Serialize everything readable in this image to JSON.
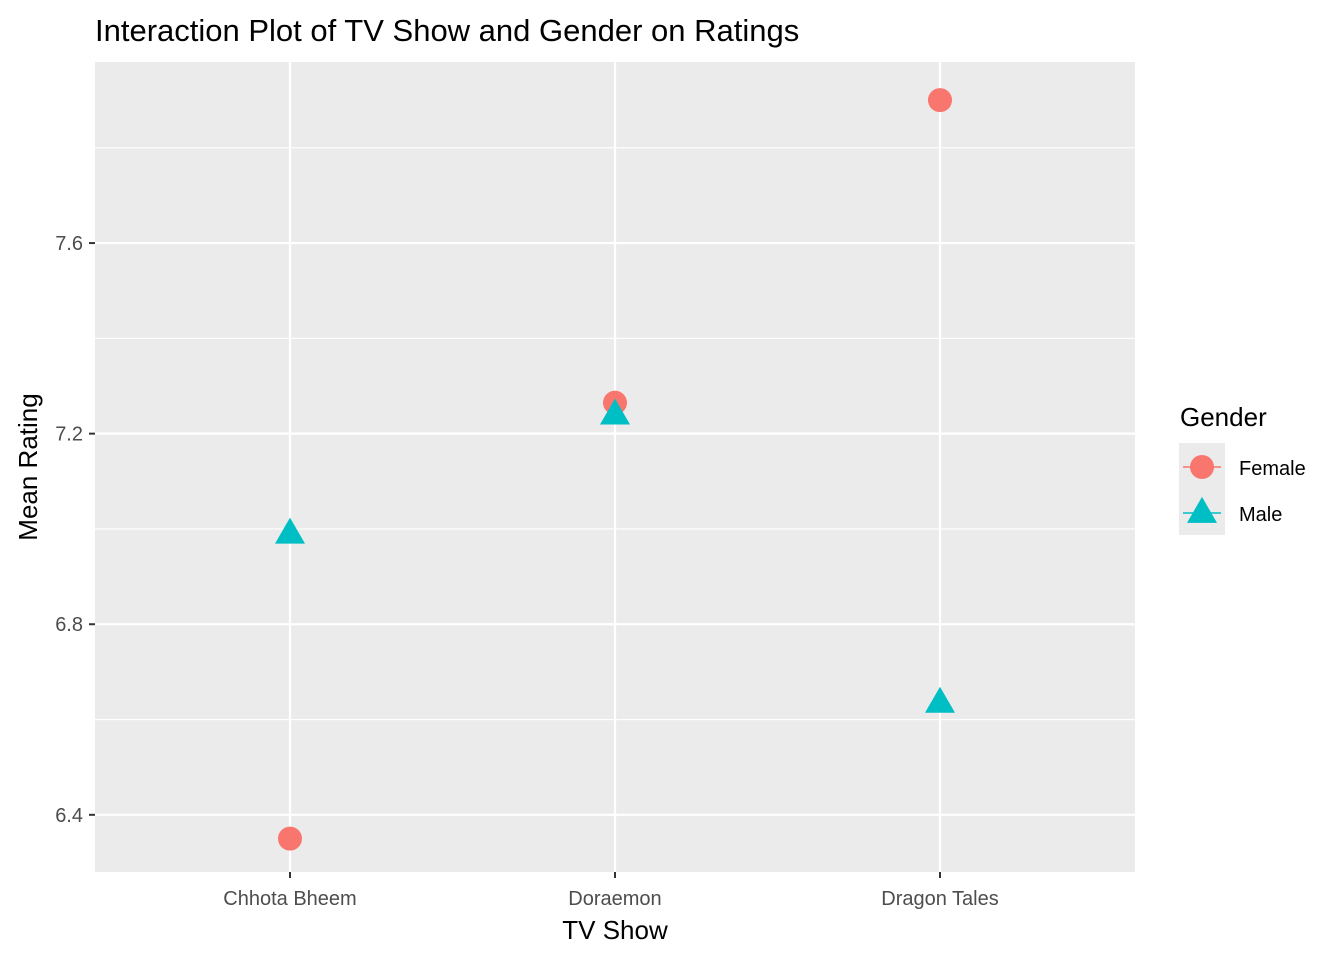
{
  "chart_data": {
    "type": "scatter",
    "title": "Interaction Plot of TV Show and Gender on Ratings",
    "xlabel": "TV Show",
    "ylabel": "Mean Rating",
    "categories": [
      "Chhota Bheem",
      "Doraemon",
      "Dragon Tales"
    ],
    "y_ticks": [
      "6.4",
      "6.8",
      "7.2",
      "7.6"
    ],
    "ylim": [
      6.28,
      7.98
    ],
    "grid": true,
    "legend_position": "right",
    "legend_title": "Gender",
    "series": [
      {
        "name": "Female",
        "shape": "circle",
        "color": "#F8766D",
        "values": [
          6.35,
          7.265,
          7.9
        ]
      },
      {
        "name": "Male",
        "shape": "triangle",
        "color": "#00BFC4",
        "values": [
          6.99,
          7.24,
          6.635
        ]
      }
    ],
    "panel_background": "#EBEBEB",
    "grid_color": "#FFFFFF"
  }
}
